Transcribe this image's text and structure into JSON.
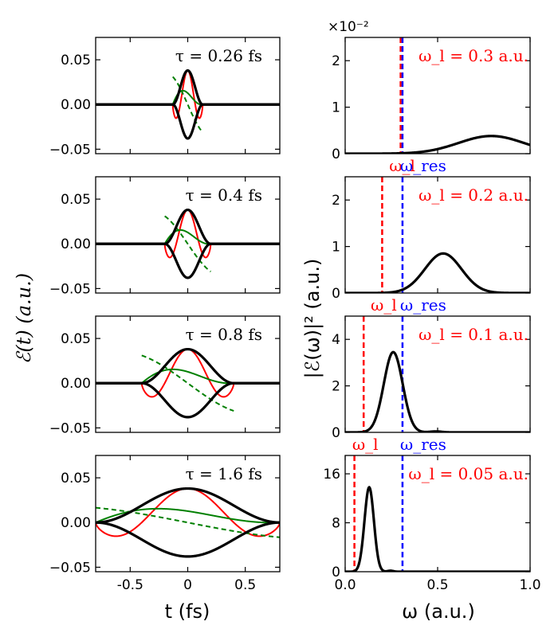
{
  "chart_data": {
    "type": "line",
    "shared_labels": {
      "left_ylabel": "ℰ(t) (a.u.)",
      "left_xlabel": "t (fs)",
      "right_ylabel": "|ℰ(ω)|² (a.u.)",
      "right_xlabel": "ω (a.u.)"
    },
    "colors": {
      "envelope": "#000000",
      "field": "#ff0000",
      "green": "#008000",
      "omega_l": "#ff0000",
      "omega_res": "#0000ff"
    },
    "time_panels": [
      {
        "label": "τ = 0.26 fs",
        "tau_fs": 0.26,
        "xlim": [
          -0.8,
          0.8
        ],
        "ylim": [
          -0.055,
          0.075
        ],
        "yticks": [
          "0.05",
          "0.00",
          "−0.05"
        ],
        "peak": 0.038,
        "green_peak": 0.015,
        "dashed_slope": -0.09,
        "red_cycles": 1.0
      },
      {
        "label": "τ = 0.4 fs",
        "tau_fs": 0.4,
        "xlim": [
          -0.8,
          0.8
        ],
        "ylim": [
          -0.055,
          0.075
        ],
        "yticks": [
          "0.05",
          "0.00",
          "−0.05"
        ],
        "peak": 0.038,
        "green_peak": 0.015,
        "dashed_slope": -0.09,
        "red_cycles": 1.0
      },
      {
        "label": "τ = 0.8 fs",
        "tau_fs": 0.8,
        "xlim": [
          -0.8,
          0.8
        ],
        "ylim": [
          -0.055,
          0.075
        ],
        "yticks": [
          "0.05",
          "0.00",
          "−0.05"
        ],
        "peak": 0.038,
        "green_peak": 0.015,
        "dashed_slope": -0.09,
        "red_cycles": 1.0
      },
      {
        "label": "τ = 1.6 fs",
        "tau_fs": 1.6,
        "xlim": [
          -0.8,
          0.8
        ],
        "ylim": [
          -0.055,
          0.075
        ],
        "yticks": [
          "0.05",
          "0.00",
          "−0.05"
        ],
        "xticks": [
          "-0.5",
          "0",
          "0.5"
        ],
        "peak": 0.038,
        "green_peak": 0.015,
        "dashed_slope": -0.048,
        "red_cycles": 1.0
      }
    ],
    "spectrum_panels": [
      {
        "label": "ω_l = 0.3 a.u.",
        "omega_l": 0.3,
        "omega_res": 0.31,
        "xlim": [
          0.0,
          1.0
        ],
        "ylim": [
          0,
          2.5
        ],
        "yticks": [
          "2",
          "1",
          "0"
        ],
        "scale_note": "×10⁻²",
        "curve": {
          "peak_x": 0.79,
          "peak_y": 0.38,
          "width": 0.25
        }
      },
      {
        "label": "ω_l = 0.2 a.u.",
        "omega_l": 0.2,
        "omega_res": 0.31,
        "xlim": [
          0.0,
          1.0
        ],
        "ylim": [
          0,
          2.5
        ],
        "yticks": [
          "2",
          "1",
          "0"
        ],
        "curve": {
          "peak_x": 0.53,
          "peak_y": 0.85,
          "width": 0.14
        }
      },
      {
        "label": "ω_l = 0.1 a.u.",
        "omega_l": 0.1,
        "omega_res": 0.31,
        "xlim": [
          0.0,
          1.0
        ],
        "ylim": [
          0,
          5
        ],
        "yticks": [
          "4",
          "2",
          "0"
        ],
        "curve": {
          "peak_x": 0.26,
          "peak_y": 3.45,
          "width": 0.072
        }
      },
      {
        "label": "ω_l = 0.05 a.u.",
        "omega_l": 0.05,
        "omega_res": 0.31,
        "xlim": [
          0.0,
          1.0
        ],
        "ylim": [
          0,
          19
        ],
        "yticks": [
          "16",
          "8",
          "0"
        ],
        "xticks": [
          "0.0",
          "0.5",
          "1.0"
        ],
        "curve": {
          "peak_x": 0.13,
          "peak_y": 13.8,
          "width": 0.036
        }
      }
    ],
    "line_labels": {
      "omega_l": "ω_l",
      "omega_res": "ω_res"
    }
  }
}
